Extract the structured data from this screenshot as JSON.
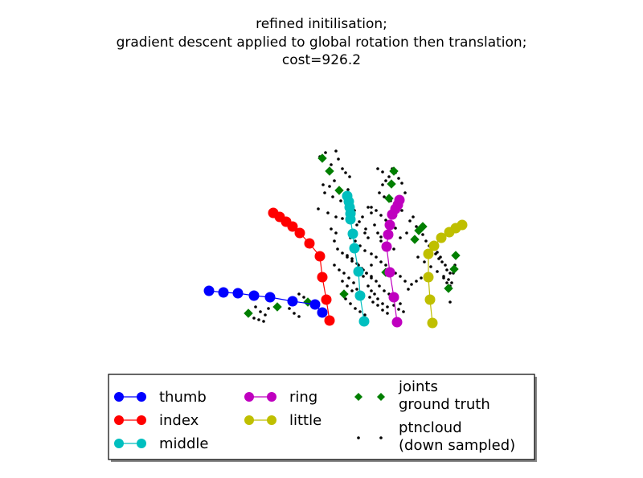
{
  "chart_data": {
    "type": "scatter",
    "title_lines": [
      "refined initilisation;",
      "gradient descent applied to global rotation then translation;",
      "cost=926.2"
    ],
    "xlabel": "",
    "ylabel": "",
    "axes_visible": false,
    "grid": false,
    "legend_position": "bottom-center",
    "series": [
      {
        "name": "thumb",
        "marker": "circle-line",
        "color": "#0000ff",
        "x": [
          260,
          278,
          296,
          316,
          336,
          364,
          392,
          401
        ],
        "y": [
          -362,
          -364,
          -365,
          -368,
          -370,
          -375,
          -379,
          -389
        ]
      },
      {
        "name": "index",
        "marker": "circle-line",
        "color": "#ff0000",
        "x": [
          340,
          348,
          356,
          364,
          373,
          385,
          398,
          401,
          406,
          410
        ],
        "y": [
          -265,
          -270,
          -276,
          -282,
          -290,
          -303,
          -319,
          -345,
          -373,
          -399
        ]
      },
      {
        "name": "middle",
        "marker": "circle-line",
        "color": "#00bfbf",
        "x": [
          432,
          434,
          435,
          436,
          436,
          439,
          441,
          446,
          448,
          453
        ],
        "y": [
          -244,
          -251,
          -258,
          -266,
          -273,
          -291,
          -309,
          -338,
          -368,
          -400
        ]
      },
      {
        "name": "ring",
        "marker": "circle-line",
        "color": "#bf00bf",
        "x": [
          497,
          495,
          492,
          488,
          485,
          483,
          481,
          485,
          490,
          494
        ],
        "y": [
          -249,
          -255,
          -260,
          -267,
          -280,
          -292,
          -307,
          -339,
          -370,
          -401
        ]
      },
      {
        "name": "little",
        "marker": "circle-line",
        "color": "#bfbf00",
        "x": [
          575,
          567,
          559,
          549,
          540,
          533,
          533,
          535,
          538
        ],
        "y": [
          -280,
          -284,
          -289,
          -296,
          -306,
          -316,
          -345,
          -373,
          -402
        ]
      },
      {
        "name": "joints\nground truth",
        "marker": "diamond",
        "color": "#007f00",
        "x": [
          401,
          410,
          422,
          437,
          490,
          487,
          484,
          521,
          526,
          516,
          567,
          565,
          558,
          480,
          428,
          383,
          345,
          309
        ],
        "y": [
          -197,
          -213,
          -237,
          -265,
          -213,
          -229,
          -247,
          -287,
          -282,
          -298,
          -318,
          -335,
          -359,
          -339,
          -366,
          -376,
          -382,
          -390
        ]
      },
      {
        "name": "ptncloud\n(down sampled)",
        "marker": "dot",
        "color": "#000000",
        "x": [
          398,
          405,
          412,
          418,
          421,
          426,
          430,
          435,
          402,
          410,
          416,
          404,
          414,
          420,
          424,
          428,
          433,
          396,
          408,
          418,
          426,
          436,
          441,
          444,
          447,
          451,
          455,
          458,
          462,
          466,
          470,
          474,
          476,
          480,
          484,
          488,
          492,
          496,
          500,
          504,
          472,
          478,
          486,
          494,
          500,
          474,
          482,
          490,
          498,
          506,
          510,
          514,
          518,
          522,
          526,
          530,
          534,
          538,
          542,
          546,
          550,
          554,
          556,
          560,
          520,
          528,
          536,
          544,
          552,
          558,
          562,
          564,
          566,
          544,
          548,
          552,
          556,
          560,
          416,
          420,
          426,
          432,
          438,
          446,
          452,
          456,
          462,
          468,
          472,
          478,
          484,
          488,
          494,
          498,
          416,
          422,
          428,
          434,
          440,
          458,
          462,
          466,
          470,
          476,
          482,
          430,
          436,
          442,
          448,
          454,
          460,
          464,
          470,
          476,
          482,
          490,
          496,
          502,
          508,
          512,
          518,
          524,
          436,
          442,
          448,
          454,
          462,
          468,
          474,
          480,
          486,
          492,
          498,
          504,
          432,
          438,
          444,
          450,
          456,
          462,
          426,
          432,
          438,
          444,
          372,
          378,
          384,
          390,
          360,
          366,
          372,
          318,
          324,
          330,
          316,
          322,
          328,
          334,
          462,
          468,
          474,
          480,
          486,
          492,
          454,
          458,
          412,
          418,
          560,
          470,
          476,
          452,
          462,
          444
        ],
        "y": [
          -195,
          -190,
          -205,
          -188,
          -198,
          -210,
          -215,
          -220,
          -230,
          -232,
          -225,
          -240,
          -245,
          -238,
          -250,
          -242,
          -236,
          -260,
          -265,
          -270,
          -272,
          -268,
          -262,
          -280,
          -276,
          -270,
          -285,
          -258,
          -265,
          -280,
          -290,
          -295,
          -230,
          -225,
          -220,
          -210,
          -215,
          -222,
          -228,
          -240,
          -240,
          -245,
          -250,
          -255,
          -262,
          -300,
          -305,
          -310,
          -296,
          -290,
          -275,
          -270,
          -282,
          -286,
          -292,
          -300,
          -306,
          -310,
          -316,
          -322,
          -326,
          -330,
          -336,
          -340,
          -320,
          -326,
          -332,
          -338,
          -344,
          -348,
          -352,
          -340,
          -330,
          -314,
          -320,
          -346,
          -352,
          -356,
          -300,
          -310,
          -315,
          -320,
          -325,
          -330,
          -336,
          -340,
          -346,
          -350,
          -356,
          -362,
          -366,
          -368,
          -372,
          -378,
          -330,
          -336,
          -340,
          -346,
          -352,
          -356,
          -362,
          -366,
          -372,
          -378,
          -382,
          -372,
          -378,
          -384,
          -388,
          -392,
          -370,
          -376,
          -380,
          -386,
          -390,
          -380,
          -385,
          -388,
          -360,
          -354,
          -350,
          -346,
          -296,
          -300,
          -306,
          -312,
          -316,
          -320,
          -326,
          -330,
          -336,
          -340,
          -344,
          -350,
          -318,
          -322,
          -328,
          -334,
          -340,
          -344,
          -350,
          -356,
          -362,
          -366,
          -366,
          -370,
          -374,
          -378,
          -384,
          -390,
          -394,
          -382,
          -388,
          -392,
          -396,
          -398,
          -400,
          -384,
          -258,
          -262,
          -268,
          -274,
          -278,
          -284,
          -290,
          -296,
          -285,
          -290,
          -376,
          -210,
          -214,
          -344,
          -330,
          -360
        ]
      }
    ]
  }
}
